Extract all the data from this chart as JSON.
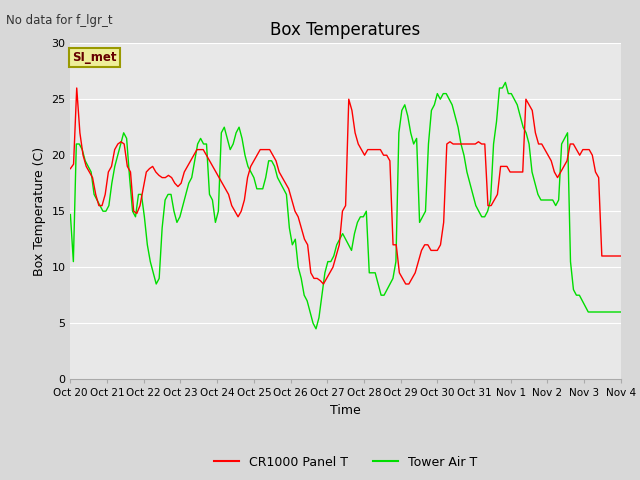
{
  "title": "Box Temperatures",
  "xlabel": "Time",
  "ylabel": "Box Temperature (C)",
  "no_data_text": "No data for f_lgr_t",
  "si_met_label": "SI_met",
  "legend_labels": [
    "CR1000 Panel T",
    "Tower Air T"
  ],
  "ylim": [
    0,
    30
  ],
  "yticks": [
    0,
    5,
    10,
    15,
    20,
    25,
    30
  ],
  "plot_bg_color": "#e8e8e8",
  "fig_bg_color": "#d8d8d8",
  "tick_labels": [
    "Oct 20",
    "Oct 21",
    "Oct 22",
    "Oct 23",
    "Oct 24",
    "Oct 25",
    "Oct 26",
    "Oct 27",
    "Oct 28",
    "Oct 29",
    "Oct 30",
    "Oct 31",
    "Nov 1",
    "Nov 2",
    "Nov 3",
    "Nov 4"
  ],
  "red_data": [
    18.8,
    19.2,
    26.0,
    22.0,
    20.0,
    19.0,
    18.5,
    18.0,
    16.5,
    15.5,
    15.5,
    16.5,
    18.5,
    19.0,
    20.5,
    21.0,
    21.2,
    21.0,
    19.0,
    18.5,
    15.0,
    14.8,
    15.5,
    17.0,
    18.5,
    18.8,
    19.0,
    18.5,
    18.2,
    18.0,
    18.0,
    18.2,
    18.0,
    17.5,
    17.2,
    17.5,
    18.5,
    19.0,
    19.5,
    20.0,
    20.5,
    20.5,
    20.5,
    20.0,
    19.5,
    19.0,
    18.5,
    18.0,
    17.5,
    17.0,
    16.5,
    15.5,
    15.0,
    14.5,
    15.0,
    16.0,
    18.0,
    19.0,
    19.5,
    20.0,
    20.5,
    20.5,
    20.5,
    20.5,
    20.0,
    19.5,
    18.5,
    18.0,
    17.5,
    17.0,
    16.0,
    15.0,
    14.5,
    13.5,
    12.5,
    12.0,
    9.5,
    9.0,
    9.0,
    8.8,
    8.5,
    9.0,
    9.5,
    10.0,
    11.0,
    12.0,
    15.0,
    15.5,
    25.0,
    24.0,
    22.0,
    21.0,
    20.5,
    20.0,
    20.5,
    20.5,
    20.5,
    20.5,
    20.5,
    20.0,
    20.0,
    19.5,
    12.0,
    12.0,
    9.5,
    9.0,
    8.5,
    8.5,
    9.0,
    9.5,
    10.5,
    11.5,
    12.0,
    12.0,
    11.5,
    11.5,
    11.5,
    12.0,
    14.0,
    21.0,
    21.2,
    21.0,
    21.0,
    21.0,
    21.0,
    21.0,
    21.0,
    21.0,
    21.0,
    21.2,
    21.0,
    21.0,
    15.5,
    15.5,
    16.0,
    16.5,
    19.0,
    19.0,
    19.0,
    18.5,
    18.5,
    18.5,
    18.5,
    18.5,
    25.0,
    24.5,
    24.0,
    22.0,
    21.0,
    21.0,
    20.5,
    20.0,
    19.5,
    18.5,
    18.0,
    18.5,
    19.0,
    19.5,
    21.0,
    21.0,
    20.5,
    20.0,
    20.5,
    20.5,
    20.5,
    20.0,
    18.5,
    18.0,
    11.0,
    11.0,
    11.0,
    11.0,
    11.0,
    11.0,
    11.0
  ],
  "green_data": [
    14.7,
    10.5,
    21.0,
    21.0,
    20.5,
    19.5,
    19.0,
    18.5,
    16.5,
    16.0,
    15.5,
    15.0,
    15.0,
    15.5,
    17.5,
    19.0,
    20.0,
    21.0,
    22.0,
    21.5,
    18.0,
    15.0,
    14.5,
    16.5,
    16.5,
    14.5,
    12.0,
    10.5,
    9.5,
    8.5,
    9.0,
    13.5,
    16.0,
    16.5,
    16.5,
    15.0,
    14.0,
    14.5,
    15.5,
    16.5,
    17.5,
    18.0,
    19.5,
    21.0,
    21.5,
    21.0,
    21.0,
    16.5,
    16.0,
    14.0,
    15.0,
    22.0,
    22.5,
    21.5,
    20.5,
    21.0,
    22.0,
    22.5,
    21.5,
    20.0,
    19.0,
    18.5,
    18.0,
    17.0,
    17.0,
    17.0,
    18.0,
    19.5,
    19.5,
    19.0,
    18.0,
    17.5,
    17.0,
    16.5,
    13.5,
    12.0,
    12.5,
    10.0,
    9.0,
    7.5,
    7.0,
    6.0,
    5.0,
    4.5,
    5.5,
    7.5,
    9.5,
    10.5,
    10.5,
    11.0,
    12.0,
    12.5,
    13.0,
    12.5,
    12.0,
    11.5,
    13.0,
    14.0,
    14.5,
    14.5,
    15.0,
    9.5,
    9.5,
    9.5,
    8.5,
    7.5,
    7.5,
    8.0,
    8.5,
    9.0,
    10.5,
    22.0,
    24.0,
    24.5,
    23.5,
    22.0,
    21.0,
    21.5,
    14.0,
    14.5,
    15.0,
    21.0,
    24.0,
    24.5,
    25.5,
    25.0,
    25.5,
    25.5,
    25.0,
    24.5,
    23.5,
    22.5,
    21.0,
    20.0,
    18.5,
    17.5,
    16.5,
    15.5,
    15.0,
    14.5,
    14.5,
    15.0,
    16.0,
    21.0,
    23.0,
    26.0,
    26.0,
    26.5,
    25.5,
    25.5,
    25.0,
    24.5,
    23.5,
    22.5,
    22.0,
    21.0,
    18.5,
    17.5,
    16.5,
    16.0,
    16.0,
    16.0,
    16.0,
    16.0,
    15.5,
    16.0,
    21.0,
    21.5,
    22.0,
    10.5,
    8.0,
    7.5,
    7.5,
    7.0,
    6.5,
    6.0,
    6.0,
    6.0,
    6.0,
    6.0,
    6.0,
    6.0,
    6.0,
    6.0,
    6.0,
    6.0,
    6.0
  ]
}
